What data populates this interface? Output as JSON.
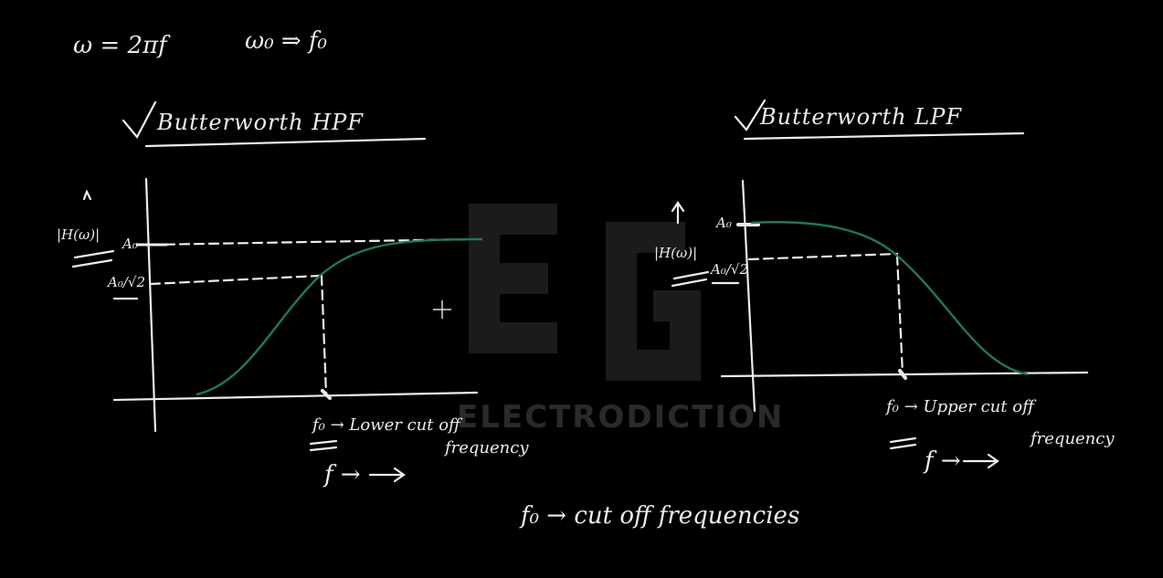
{
  "formula_omega": "ω = 2πf",
  "formula_f0": "ω₀ ⇒ f₀",
  "watermark": "ELECTRODICTION",
  "hpf": {
    "title": "Butterworth HPF",
    "y_axis_label": "|H(ω)|",
    "a0_label": "A₀",
    "a0_root2_label": "A₀/√2",
    "f0_note": "f₀ → Lower cut off",
    "f0_note_line2": "frequency",
    "x_axis_label": "f →"
  },
  "lpf": {
    "title": "Butterworth LPF",
    "y_axis_label": "|H(ω)|",
    "a0_label": "A₀",
    "a0_root2_label": "A₀/√2",
    "f0_note": "f₀ → Upper cut off",
    "f0_note_line2": "frequency",
    "x_axis_label": "f →"
  },
  "footer_note": "f₀ → cut off frequencies",
  "colors": {
    "curve": "#1f7a55",
    "ink": "#ececec",
    "background": "#000000"
  }
}
